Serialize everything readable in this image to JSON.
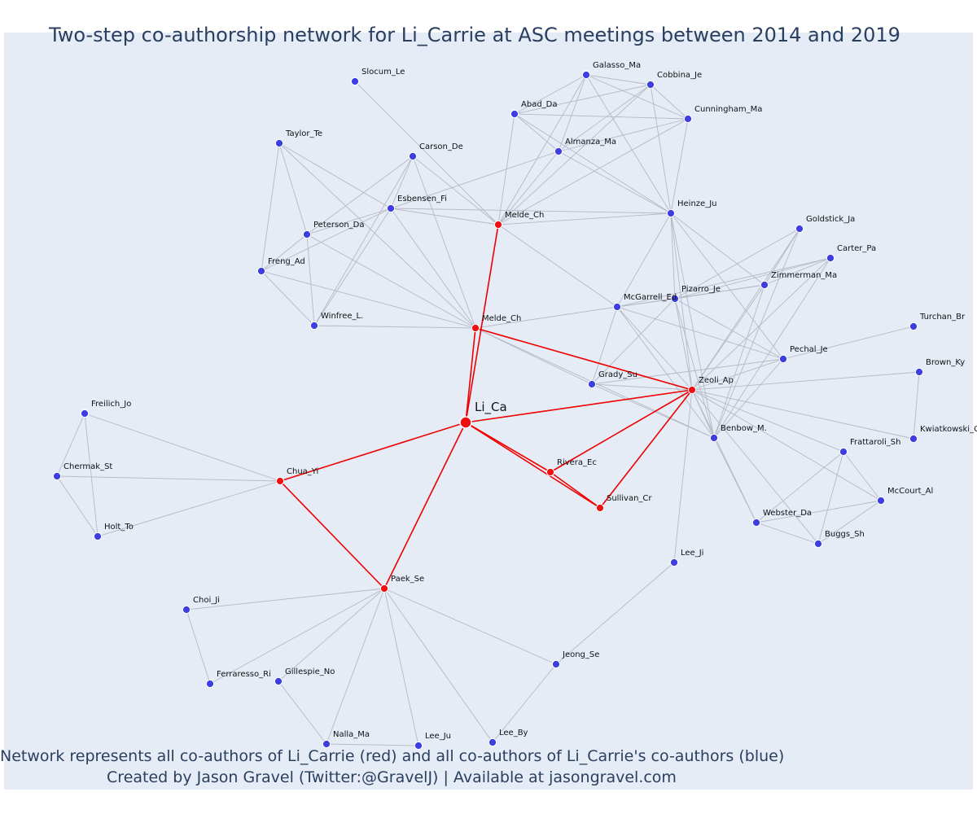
{
  "title": "Two-step co-authorship network for Li_Carrie at ASC meetings between 2014 and 2019",
  "footer": {
    "line1": "Network represents all co-authors of Li_Carrie (red) and all co-authors of Li_Carrie's co-authors (blue)",
    "line2": "Created by Jason Gravel (Twitter:@GravelJ) | Available at jasongravel.com"
  },
  "colors": {
    "first_degree": "#ee1111",
    "second_degree": "#3d3de0",
    "edge_gray": "#b5b9c6",
    "edge_red": "#ee0000",
    "background": "#e5ecf6",
    "text": "#2a3f5f"
  },
  "nodes": [
    {
      "id": "li",
      "label": "Li_Ca",
      "group": "center"
    },
    {
      "id": "melde1",
      "label": "Melde_Ch",
      "group": "first"
    },
    {
      "id": "melde2",
      "label": "Melde_Ch",
      "group": "first"
    },
    {
      "id": "zeoli",
      "label": "Zeoli_Ap",
      "group": "first"
    },
    {
      "id": "chua",
      "label": "Chua_Yi",
      "group": "first"
    },
    {
      "id": "paek",
      "label": "Paek_Se",
      "group": "first"
    },
    {
      "id": "rivera",
      "label": "Rivera_Ec",
      "group": "first"
    },
    {
      "id": "sullivan",
      "label": "Sullivan_Cr",
      "group": "first"
    },
    {
      "id": "slocum",
      "label": "Slocum_Le",
      "group": "second"
    },
    {
      "id": "galasso",
      "label": "Galasso_Ma",
      "group": "second"
    },
    {
      "id": "cobbina",
      "label": "Cobbina_Je",
      "group": "second"
    },
    {
      "id": "abad",
      "label": "Abad_Da",
      "group": "second"
    },
    {
      "id": "cunningham",
      "label": "Cunningham_Ma",
      "group": "second"
    },
    {
      "id": "almanza",
      "label": "Almanza_Ma",
      "group": "second"
    },
    {
      "id": "taylor",
      "label": "Taylor_Te",
      "group": "second"
    },
    {
      "id": "carson",
      "label": "Carson_De",
      "group": "second"
    },
    {
      "id": "esbensen",
      "label": "Esbensen_Fi",
      "group": "second"
    },
    {
      "id": "peterson",
      "label": "Peterson_Da",
      "group": "second"
    },
    {
      "id": "freng",
      "label": "Freng_Ad",
      "group": "second"
    },
    {
      "id": "winfree",
      "label": "Winfree_L.",
      "group": "second"
    },
    {
      "id": "heinze",
      "label": "Heinze_Ju",
      "group": "second"
    },
    {
      "id": "goldstick",
      "label": "Goldstick_Ja",
      "group": "second"
    },
    {
      "id": "carter",
      "label": "Carter_Pa",
      "group": "second"
    },
    {
      "id": "zimmerman",
      "label": "Zimmerman_Ma",
      "group": "second"
    },
    {
      "id": "pizarro",
      "label": "Pizarro_Je",
      "group": "second"
    },
    {
      "id": "mcgarrell",
      "label": "McGarrell_Ed",
      "group": "second"
    },
    {
      "id": "turchan",
      "label": "Turchan_Br",
      "group": "second"
    },
    {
      "id": "pechal",
      "label": "Pechal_Je",
      "group": "second"
    },
    {
      "id": "brown",
      "label": "Brown_Ky",
      "group": "second"
    },
    {
      "id": "grady",
      "label": "Grady_Su",
      "group": "second"
    },
    {
      "id": "kwiatkowski",
      "label": "Kwiatkowski_C",
      "group": "second"
    },
    {
      "id": "benbow",
      "label": "Benbow_M.",
      "group": "second"
    },
    {
      "id": "frattaroli",
      "label": "Frattaroli_Sh",
      "group": "second"
    },
    {
      "id": "mccourt",
      "label": "McCourt_Al",
      "group": "second"
    },
    {
      "id": "webster",
      "label": "Webster_Da",
      "group": "second"
    },
    {
      "id": "buggs",
      "label": "Buggs_Sh",
      "group": "second"
    },
    {
      "id": "leeji",
      "label": "Lee_Ji",
      "group": "second"
    },
    {
      "id": "freilich",
      "label": "Freilich_Jo",
      "group": "second"
    },
    {
      "id": "chermak",
      "label": "Chermak_St",
      "group": "second"
    },
    {
      "id": "holt",
      "label": "Holt_To",
      "group": "second"
    },
    {
      "id": "choi",
      "label": "Choi_Ji",
      "group": "second"
    },
    {
      "id": "ferraresso",
      "label": "Ferraresso_Ri",
      "group": "second"
    },
    {
      "id": "gillespie",
      "label": "Gillespie_No",
      "group": "second"
    },
    {
      "id": "nalla",
      "label": "Nalla_Ma",
      "group": "second"
    },
    {
      "id": "leeju",
      "label": "Lee_Ju",
      "group": "second"
    },
    {
      "id": "leeby",
      "label": "Lee_By",
      "group": "second"
    },
    {
      "id": "jeong",
      "label": "Jeong_Se",
      "group": "second"
    }
  ],
  "edges": [
    [
      "li",
      "melde1"
    ],
    [
      "li",
      "melde2"
    ],
    [
      "li",
      "zeoli"
    ],
    [
      "li",
      "chua"
    ],
    [
      "li",
      "paek"
    ],
    [
      "li",
      "rivera"
    ],
    [
      "li",
      "sullivan"
    ],
    [
      "melde2",
      "zeoli"
    ],
    [
      "rivera",
      "zeoli"
    ],
    [
      "sullivan",
      "zeoli"
    ],
    [
      "rivera",
      "sullivan"
    ],
    [
      "chua",
      "paek"
    ],
    [
      "melde1",
      "slocum"
    ],
    [
      "melde1",
      "carson"
    ],
    [
      "melde1",
      "esbensen"
    ],
    [
      "melde1",
      "abad"
    ],
    [
      "melde1",
      "almanza"
    ],
    [
      "melde1",
      "galasso"
    ],
    [
      "melde1",
      "cobbina"
    ],
    [
      "melde1",
      "cunningham"
    ],
    [
      "melde1",
      "heinze"
    ],
    [
      "melde1",
      "mcgarrell"
    ],
    [
      "melde2",
      "taylor"
    ],
    [
      "melde2",
      "esbensen"
    ],
    [
      "melde2",
      "carson"
    ],
    [
      "melde2",
      "freng"
    ],
    [
      "melde2",
      "winfree"
    ],
    [
      "melde2",
      "mcgarrell"
    ],
    [
      "melde2",
      "grady"
    ],
    [
      "melde2",
      "benbow"
    ],
    [
      "melde2",
      "peterson"
    ],
    [
      "galasso",
      "cobbina"
    ],
    [
      "galasso",
      "abad"
    ],
    [
      "galasso",
      "almanza"
    ],
    [
      "galasso",
      "cunningham"
    ],
    [
      "galasso",
      "heinze"
    ],
    [
      "cobbina",
      "abad"
    ],
    [
      "cobbina",
      "almanza"
    ],
    [
      "cobbina",
      "cunningham"
    ],
    [
      "cobbina",
      "heinze"
    ],
    [
      "abad",
      "almanza"
    ],
    [
      "abad",
      "cunningham"
    ],
    [
      "abad",
      "heinze"
    ],
    [
      "almanza",
      "cunningham"
    ],
    [
      "almanza",
      "heinze"
    ],
    [
      "almanza",
      "esbensen"
    ],
    [
      "cunningham",
      "heinze"
    ],
    [
      "taylor",
      "esbensen"
    ],
    [
      "taylor",
      "peterson"
    ],
    [
      "taylor",
      "freng"
    ],
    [
      "carson",
      "esbensen"
    ],
    [
      "carson",
      "peterson"
    ],
    [
      "carson",
      "winfree"
    ],
    [
      "esbensen",
      "peterson"
    ],
    [
      "esbensen",
      "freng"
    ],
    [
      "esbensen",
      "winfree"
    ],
    [
      "esbensen",
      "heinze"
    ],
    [
      "peterson",
      "freng"
    ],
    [
      "peterson",
      "winfree"
    ],
    [
      "freng",
      "winfree"
    ],
    [
      "heinze",
      "zeoli"
    ],
    [
      "heinze",
      "pizarro"
    ],
    [
      "heinze",
      "mcgarrell"
    ],
    [
      "heinze",
      "zimmerman"
    ],
    [
      "heinze",
      "benbow"
    ],
    [
      "heinze",
      "pechal"
    ],
    [
      "goldstick",
      "zimmerman"
    ],
    [
      "goldstick",
      "zeoli"
    ],
    [
      "goldstick",
      "pizarro"
    ],
    [
      "goldstick",
      "benbow"
    ],
    [
      "carter",
      "zimmerman"
    ],
    [
      "carter",
      "zeoli"
    ],
    [
      "carter",
      "pizarro"
    ],
    [
      "carter",
      "mcgarrell"
    ],
    [
      "carter",
      "benbow"
    ],
    [
      "zimmerman",
      "zeoli"
    ],
    [
      "zimmerman",
      "pizarro"
    ],
    [
      "zimmerman",
      "mcgarrell"
    ],
    [
      "zimmerman",
      "benbow"
    ],
    [
      "pizarro",
      "zeoli"
    ],
    [
      "pizarro",
      "mcgarrell"
    ],
    [
      "pizarro",
      "benbow"
    ],
    [
      "pizarro",
      "grady"
    ],
    [
      "pizarro",
      "pechal"
    ],
    [
      "mcgarrell",
      "zeoli"
    ],
    [
      "mcgarrell",
      "grady"
    ],
    [
      "mcgarrell",
      "pechal"
    ],
    [
      "mcgarrell",
      "benbow"
    ],
    [
      "grady",
      "zeoli"
    ],
    [
      "grady",
      "pechal"
    ],
    [
      "grady",
      "benbow"
    ],
    [
      "pechal",
      "zeoli"
    ],
    [
      "pechal",
      "turchan"
    ],
    [
      "pechal",
      "benbow"
    ],
    [
      "zeoli",
      "brown"
    ],
    [
      "zeoli",
      "kwiatkowski"
    ],
    [
      "brown",
      "kwiatkowski"
    ],
    [
      "zeoli",
      "benbow"
    ],
    [
      "zeoli",
      "frattaroli"
    ],
    [
      "zeoli",
      "mccourt"
    ],
    [
      "zeoli",
      "webster"
    ],
    [
      "zeoli",
      "buggs"
    ],
    [
      "zeoli",
      "leeji"
    ],
    [
      "benbow",
      "webster"
    ],
    [
      "frattaroli",
      "mccourt"
    ],
    [
      "frattaroli",
      "webster"
    ],
    [
      "frattaroli",
      "buggs"
    ],
    [
      "mccourt",
      "webster"
    ],
    [
      "mccourt",
      "buggs"
    ],
    [
      "webster",
      "buggs"
    ],
    [
      "chua",
      "freilich"
    ],
    [
      "chua",
      "chermak"
    ],
    [
      "chua",
      "holt"
    ],
    [
      "freilich",
      "chermak"
    ],
    [
      "freilich",
      "holt"
    ],
    [
      "chermak",
      "holt"
    ],
    [
      "paek",
      "choi"
    ],
    [
      "paek",
      "ferraresso"
    ],
    [
      "paek",
      "gillespie"
    ],
    [
      "paek",
      "nalla"
    ],
    [
      "paek",
      "leeju"
    ],
    [
      "paek",
      "leeby"
    ],
    [
      "paek",
      "jeong"
    ],
    [
      "choi",
      "ferraresso"
    ],
    [
      "gillespie",
      "nalla"
    ],
    [
      "nalla",
      "leeju"
    ],
    [
      "jeong",
      "leeby"
    ],
    [
      "jeong",
      "leeji"
    ]
  ]
}
